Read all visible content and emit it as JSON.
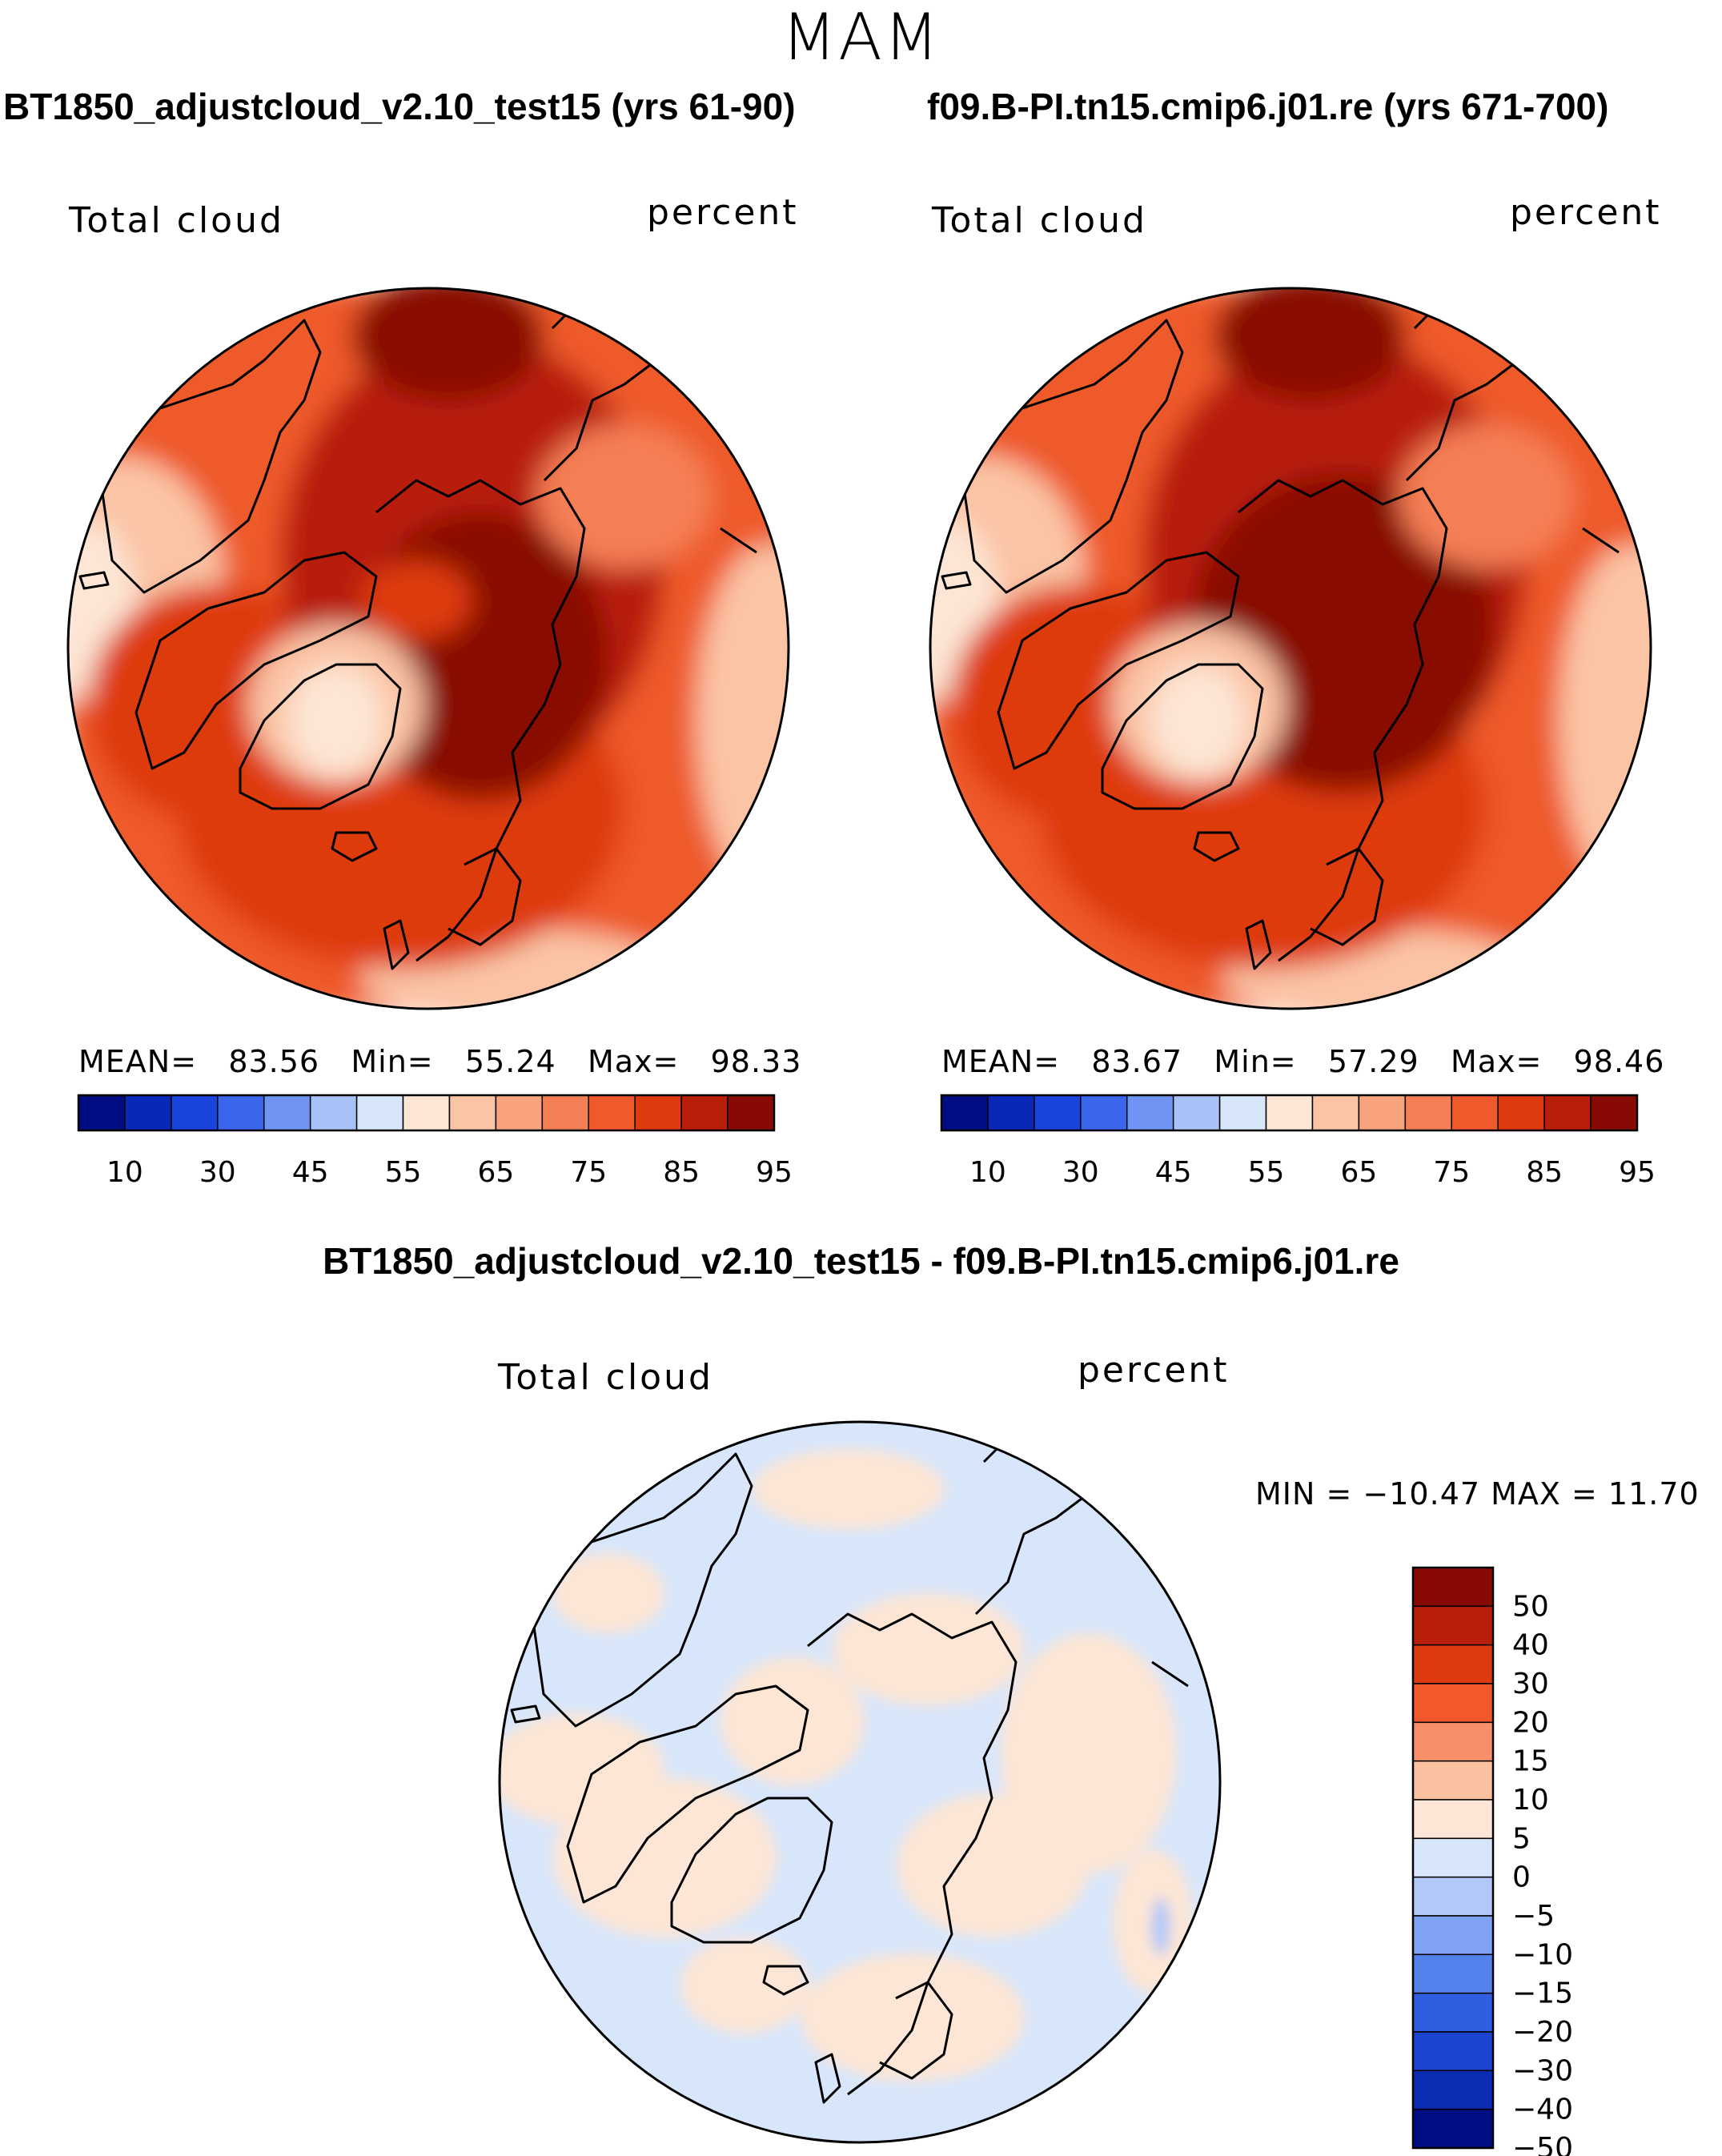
{
  "season": "MAM",
  "panels": {
    "left": {
      "title": "BT1850_adjustcloud_v2.10_test15 (yrs 61-90)",
      "variable": "Total cloud",
      "units": "percent",
      "stats": {
        "mean_label": "MEAN=",
        "mean": "83.56",
        "min_label": "Min=",
        "min": "55.24",
        "max_label": "Max=",
        "max": "98.33"
      }
    },
    "right": {
      "title": "f09.B-PI.tn15.cmip6.j01.re (yrs 671-700)",
      "variable": "Total cloud",
      "units": "percent",
      "stats": {
        "mean_label": "MEAN=",
        "mean": "83.67",
        "min_label": "Min=",
        "min": "57.29",
        "max_label": "Max=",
        "max": "98.46"
      }
    },
    "diff": {
      "title": "BT1850_adjustcloud_v2.10_test15 - f09.B-PI.tn15.cmip6.j01.re",
      "variable": "Total cloud",
      "units": "percent",
      "minmax_text": "MIN = −10.47 MAX =   11.70"
    }
  },
  "chart_data": [
    {
      "type": "heatmap",
      "projection": "north polar stereographic",
      "title": "BT1850_adjustcloud_v2.10_test15 (yrs 61-90)",
      "variable": "Total cloud",
      "units": "percent",
      "mean": 83.56,
      "min": 55.24,
      "max": 98.33,
      "levels": [
        10,
        20,
        30,
        40,
        45,
        50,
        55,
        60,
        65,
        70,
        75,
        80,
        85,
        90,
        95
      ],
      "tick_labels": [
        "10",
        "30",
        "45",
        "55",
        "65",
        "75",
        "85",
        "95"
      ],
      "colors": [
        "#000c82",
        "#0a28b8",
        "#1a44dc",
        "#3b66ec",
        "#6f94f4",
        "#a8c2f8",
        "#d8e6fb",
        "#fde6d5",
        "#fbc4a5",
        "#f8a27e",
        "#f57f54",
        "#ee5a2c",
        "#de3a10",
        "#b81f08",
        "#880a05"
      ]
    },
    {
      "type": "heatmap",
      "projection": "north polar stereographic",
      "title": "f09.B-PI.tn15.cmip6.j01.re (yrs 671-700)",
      "variable": "Total cloud",
      "units": "percent",
      "mean": 83.67,
      "min": 57.29,
      "max": 98.46,
      "levels": [
        10,
        20,
        30,
        40,
        45,
        50,
        55,
        60,
        65,
        70,
        75,
        80,
        85,
        90,
        95
      ],
      "tick_labels": [
        "10",
        "30",
        "45",
        "55",
        "65",
        "75",
        "85",
        "95"
      ],
      "colors": [
        "#000c82",
        "#0a28b8",
        "#1a44dc",
        "#3b66ec",
        "#6f94f4",
        "#a8c2f8",
        "#d8e6fb",
        "#fde6d5",
        "#fbc4a5",
        "#f8a27e",
        "#f57f54",
        "#ee5a2c",
        "#de3a10",
        "#b81f08",
        "#880a05"
      ]
    },
    {
      "type": "heatmap",
      "projection": "north polar stereographic",
      "title": "BT1850_adjustcloud_v2.10_test15 - f09.B-PI.tn15.cmip6.j01.re",
      "variable": "Total cloud",
      "units": "percent",
      "min": -10.47,
      "max": 11.7,
      "levels": [
        "50",
        "40",
        "30",
        "20",
        "15",
        "10",
        "5",
        "0",
        "−5",
        "−10",
        "−15",
        "−20",
        "−30",
        "−40",
        "−50"
      ],
      "colors_top_to_bottom": [
        "#880a05",
        "#b81f08",
        "#de3a10",
        "#f2582c",
        "#f7906a",
        "#fbc0a0",
        "#fde6d5",
        "#d8e6fb",
        "#b2c8f8",
        "#7fa2f2",
        "#5482ec",
        "#2f5fe0",
        "#1b45d0",
        "#0c2cb4",
        "#000c82"
      ]
    }
  ]
}
